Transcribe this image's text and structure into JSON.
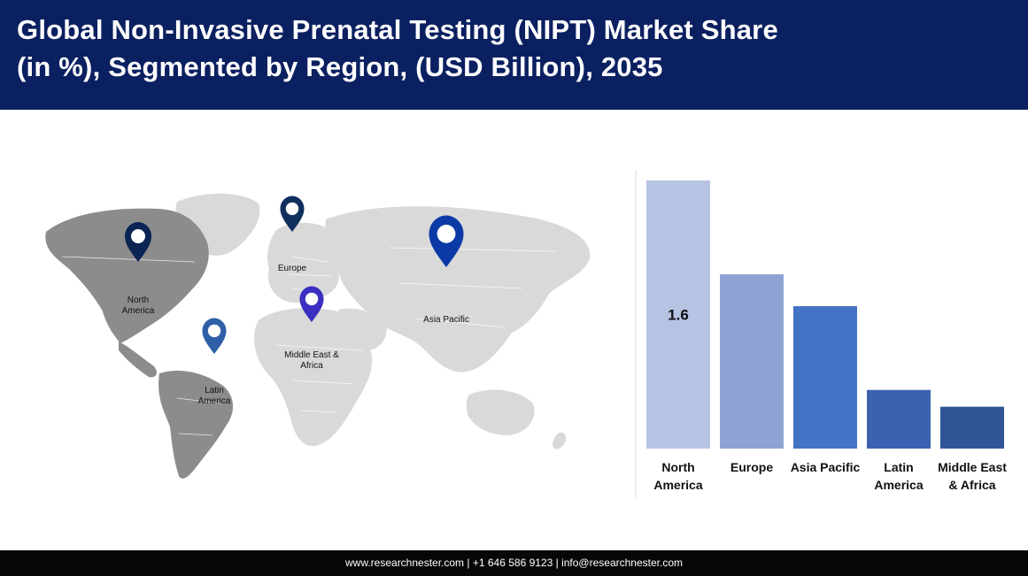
{
  "header": {
    "title_line1": "Global Non-Invasive Prenatal Testing (NIPT) Market Share",
    "title_line2": "(in %), Segmented by Region, (USD Billion), 2035"
  },
  "map": {
    "regions": [
      {
        "label_lines": [
          "North",
          "America"
        ],
        "pin_color": "#0b2454"
      },
      {
        "label_lines": [
          "Europe"
        ],
        "pin_color": "#0f2f5c"
      },
      {
        "label_lines": [
          "Asia Pacific"
        ],
        "pin_color": "#0b3aa6"
      },
      {
        "label_lines": [
          "Middle East &",
          "Africa"
        ],
        "pin_color": "#3a2fc0"
      },
      {
        "label_lines": [
          "Latin",
          "America"
        ],
        "pin_color": "#2f5fa6"
      }
    ]
  },
  "chart_data": {
    "type": "bar",
    "title": "Global Non-Invasive Prenatal Testing (NIPT) Market Share (in %), Segmented by Region, (USD Billion), 2035",
    "categories": [
      [
        "North",
        "America"
      ],
      [
        "Europe"
      ],
      [
        "Asia Pacific"
      ],
      [
        "Latin",
        "America"
      ],
      [
        "Middle East",
        "& Africa"
      ]
    ],
    "values": [
      1.6,
      1.04,
      0.85,
      0.35,
      0.25
    ],
    "data_labels": [
      "1.6",
      "",
      "",
      "",
      ""
    ],
    "colors": [
      "#b6c3e3",
      "#8ea2d4",
      "#4472c4",
      "#3b62b0",
      "#2f5597"
    ],
    "ylim": [
      0,
      1.6
    ],
    "xlabel": "",
    "ylabel": "",
    "grid": false
  },
  "footer": {
    "website": "www.researchnester.com",
    "separator": " | ",
    "phone": "+1 646 586 9123",
    "email": "info@researchnester.com"
  }
}
